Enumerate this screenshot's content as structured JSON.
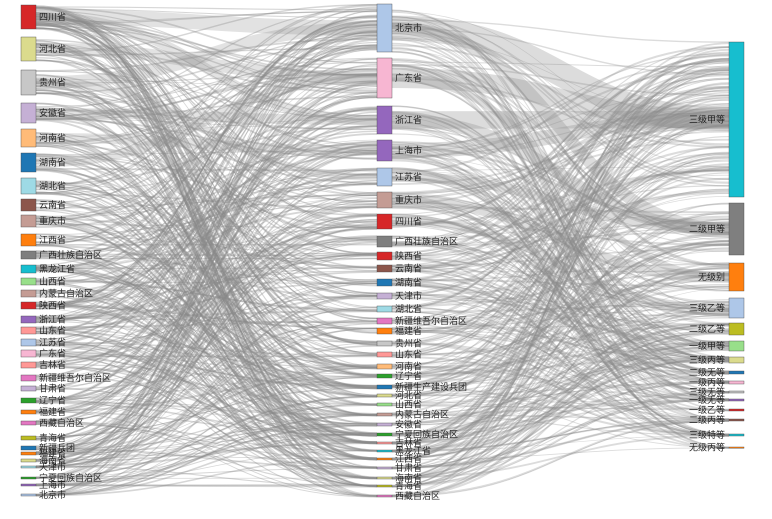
{
  "chart_data": {
    "type": "sankey",
    "columns": [
      {
        "name": "",
        "nodes": [
          {
            "label": "四川省",
            "color": "#d62728"
          },
          {
            "label": "河北省",
            "color": "#dbdb8d"
          },
          {
            "label": "贵州省",
            "color": "#c7c7c7"
          },
          {
            "label": "安徽省",
            "color": "#c5b0d5"
          },
          {
            "label": "河南省",
            "color": "#ffbb78"
          },
          {
            "label": "湖南省",
            "color": "#1f77b4"
          },
          {
            "label": "湖北省",
            "color": "#9edae5"
          },
          {
            "label": "云南省",
            "color": "#8c564b"
          },
          {
            "label": "重庆市",
            "color": "#c49c94"
          },
          {
            "label": "江西省",
            "color": "#ff7f0e"
          },
          {
            "label": "广西壮族自治区",
            "color": "#7f7f7f"
          },
          {
            "label": "黑龙江省",
            "color": "#17becf"
          },
          {
            "label": "山西省",
            "color": "#98df8a"
          },
          {
            "label": "内蒙古自治区",
            "color": "#c49c94"
          },
          {
            "label": "陕西省",
            "color": "#d62728"
          },
          {
            "label": "浙江省",
            "color": "#9467bd"
          },
          {
            "label": "山东省",
            "color": "#ff9896"
          },
          {
            "label": "江苏省",
            "color": "#aec7e8"
          },
          {
            "label": "广东省",
            "color": "#f7b6d2"
          },
          {
            "label": "吉林省",
            "color": "#ff9896"
          },
          {
            "label": "新疆维吾尔自治区",
            "color": "#e377c2"
          },
          {
            "label": "甘肃省",
            "color": "#c5b0d5"
          },
          {
            "label": "辽宁省",
            "color": "#2ca02c"
          },
          {
            "label": "福建省",
            "color": "#ff7f0e"
          },
          {
            "label": "西藏自治区",
            "color": "#e377c2"
          },
          {
            "label": "青海省",
            "color": "#bcbd22"
          },
          {
            "label": "新疆兵团",
            "color": "#1f77b4"
          },
          {
            "label": "福建省",
            "color": "#ff7f0e"
          },
          {
            "label": "海南省",
            "color": "#dbdb8d"
          },
          {
            "label": "天津市",
            "color": "#9edae5"
          },
          {
            "label": "宁夏回族自治区",
            "color": "#2ca02c"
          },
          {
            "label": "上海市",
            "color": "#9467bd"
          },
          {
            "label": "北京市",
            "color": "#aec7e8"
          }
        ]
      },
      {
        "name": "",
        "nodes": [
          {
            "label": "北京市",
            "color": "#aec7e8"
          },
          {
            "label": "广东省",
            "color": "#f7b6d2"
          },
          {
            "label": "浙江省",
            "color": "#9467bd"
          },
          {
            "label": "上海市",
            "color": "#9467bd"
          },
          {
            "label": "江苏省",
            "color": "#aec7e8"
          },
          {
            "label": "重庆市",
            "color": "#c49c94"
          },
          {
            "label": "四川省",
            "color": "#d62728"
          },
          {
            "label": "广西壮族自治区",
            "color": "#7f7f7f"
          },
          {
            "label": "陕西省",
            "color": "#d62728"
          },
          {
            "label": "云南省",
            "color": "#8c564b"
          },
          {
            "label": "湖南省",
            "color": "#1f77b4"
          },
          {
            "label": "天津市",
            "color": "#c5b0d5"
          },
          {
            "label": "湖北省",
            "color": "#9edae5"
          },
          {
            "label": "新疆维吾尔自治区",
            "color": "#e377c2"
          },
          {
            "label": "福建省",
            "color": "#ff7f0e"
          },
          {
            "label": "贵州省",
            "color": "#c7c7c7"
          },
          {
            "label": "山东省",
            "color": "#ff9896"
          },
          {
            "label": "河南省",
            "color": "#ffbb78"
          },
          {
            "label": "辽宁省",
            "color": "#2ca02c"
          },
          {
            "label": "新疆生产建设兵团",
            "color": "#1f77b4"
          },
          {
            "label": "河北省",
            "color": "#dbdb8d"
          },
          {
            "label": "山西省",
            "color": "#98df8a"
          },
          {
            "label": "内蒙古自治区",
            "color": "#c49c94"
          },
          {
            "label": "安徽省",
            "color": "#c5b0d5"
          },
          {
            "label": "宁夏回族自治区",
            "color": "#2ca02c"
          },
          {
            "label": "吉林省",
            "color": "#ff9896"
          },
          {
            "label": "黑龙江省",
            "color": "#17becf"
          },
          {
            "label": "江西省",
            "color": "#ff7f0e"
          },
          {
            "label": "甘肃省",
            "color": "#c5b0d5"
          },
          {
            "label": "海南省",
            "color": "#dbdb8d"
          },
          {
            "label": "青海省",
            "color": "#bcbd22"
          },
          {
            "label": "西藏自治区",
            "color": "#e377c2"
          }
        ]
      },
      {
        "name": "",
        "nodes": [
          {
            "label": "三级甲等",
            "color": "#17becf"
          },
          {
            "label": "二级甲等",
            "color": "#7f7f7f"
          },
          {
            "label": "无级别",
            "color": "#ff7f0e"
          },
          {
            "label": "三级乙等",
            "color": "#aec7e8"
          },
          {
            "label": "二级乙等",
            "color": "#bcbd22"
          },
          {
            "label": "一级甲等",
            "color": "#98df8a"
          },
          {
            "label": "三级丙等",
            "color": "#dbdb8d"
          },
          {
            "label": "二级无等",
            "color": "#1f77b4"
          },
          {
            "label": "一级丙等",
            "color": "#f7b6d2"
          },
          {
            "label": "三级无等",
            "color": "#c7c7c7"
          },
          {
            "label": "一级无等",
            "color": "#9467bd"
          },
          {
            "label": "一级乙等",
            "color": "#d62728"
          },
          {
            "label": "二级丙等",
            "color": "#8c564b"
          },
          {
            "label": "三级特等",
            "color": "#17becf"
          },
          {
            "label": "无级丙等",
            "color": "#ff7f0e"
          }
        ]
      }
    ]
  }
}
